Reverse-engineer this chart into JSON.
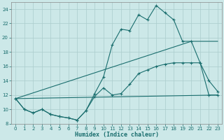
{
  "xlabel": "Humidex (Indice chaleur)",
  "background_color": "#cce8e8",
  "line_color": "#1a6e6e",
  "grid_color": "#aacccc",
  "xlim": [
    -0.5,
    23.5
  ],
  "ylim": [
    8,
    25
  ],
  "xticks": [
    0,
    1,
    2,
    3,
    4,
    5,
    6,
    7,
    8,
    9,
    10,
    11,
    12,
    13,
    14,
    15,
    16,
    17,
    18,
    19,
    20,
    21,
    22,
    23
  ],
  "yticks": [
    8,
    10,
    12,
    14,
    16,
    18,
    20,
    22,
    24
  ],
  "line1_x": [
    0,
    1,
    2,
    3,
    4,
    5,
    6,
    7,
    8,
    9,
    10,
    11,
    12,
    13,
    14,
    15,
    16,
    17,
    18,
    19,
    20,
    21,
    22,
    23
  ],
  "line1_y": [
    11.5,
    10.0,
    9.5,
    10.0,
    9.3,
    9.0,
    8.8,
    8.5,
    9.8,
    12.2,
    14.5,
    19.0,
    21.2,
    21.0,
    23.2,
    22.5,
    24.5,
    23.5,
    22.5,
    19.5,
    19.5,
    16.5,
    14.0,
    12.5
  ],
  "line2_x": [
    0,
    1,
    2,
    3,
    4,
    5,
    6,
    7,
    8,
    9,
    10,
    11,
    12,
    13,
    14,
    15,
    16,
    17,
    18,
    19,
    20,
    21,
    22,
    23
  ],
  "line2_y": [
    11.5,
    10.0,
    9.5,
    10.0,
    9.3,
    9.0,
    8.8,
    8.5,
    9.8,
    11.8,
    13.0,
    12.0,
    12.2,
    13.5,
    15.0,
    15.5,
    16.0,
    16.3,
    16.5,
    16.5,
    16.5,
    16.5,
    12.0,
    12.0
  ],
  "line3_x": [
    0,
    23
  ],
  "line3_y": [
    11.5,
    12.0
  ],
  "line4_x": [
    0,
    20,
    23
  ],
  "line4_y": [
    11.5,
    19.5,
    19.5
  ]
}
